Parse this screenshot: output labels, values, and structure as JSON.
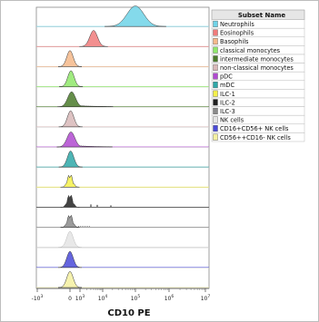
{
  "chart_data": {
    "type": "histogram-overlay",
    "xlabel": "CD10 PE",
    "x_scale": "biexponential",
    "x_ticks": [
      {
        "label": "-10",
        "sup": "3"
      },
      {
        "label": "0",
        "sup": ""
      },
      {
        "label": "10",
        "sup": "3"
      },
      {
        "label": "10",
        "sup": "4"
      },
      {
        "label": "10",
        "sup": "5"
      },
      {
        "label": "10",
        "sup": "6"
      },
      {
        "label": "10",
        "sup": "7"
      }
    ],
    "legend_title": "Subset Name",
    "legend_position": "top-right",
    "series": [
      {
        "name": "Neutrophils",
        "color": "#6fd3e8",
        "peak_log10": 5.0,
        "shape": "wide"
      },
      {
        "name": "Eosinophils",
        "color": "#f07b7b",
        "peak_log10": 3.6,
        "shape": "medium"
      },
      {
        "name": "Basophils",
        "color": "#f4b88a",
        "peak_log10": 0,
        "shape": "narrow"
      },
      {
        "name": "classical monocytes",
        "color": "#8fe86a",
        "peak_log10": 0.3,
        "shape": "narrow"
      },
      {
        "name": "intermediate monocytes",
        "color": "#4a7a2a",
        "peak_log10": 0.5,
        "shape": "tail"
      },
      {
        "name": "non-classical monocytes",
        "color": "#d8b8b8",
        "peak_log10": 0.2,
        "shape": "narrow"
      },
      {
        "name": "pDC",
        "color": "#b04ad0",
        "peak_log10": 0.3,
        "shape": "tail"
      },
      {
        "name": "mDC",
        "color": "#2fa8a8",
        "peak_log10": 0.2,
        "shape": "narrow"
      },
      {
        "name": "ILC-1",
        "color": "#f4f04a",
        "peak_log10": 0,
        "shape": "spiky"
      },
      {
        "name": "ILC-2",
        "color": "#222222",
        "peak_log10": 0,
        "shape": "spiky"
      },
      {
        "name": "ILC-3",
        "color": "#8a8a8a",
        "peak_log10": 0,
        "shape": "spiky"
      },
      {
        "name": "NK cells",
        "color": "#e4e4e4",
        "peak_log10": 0,
        "shape": "narrow"
      },
      {
        "name": "CD16+CD56+ NK cells",
        "color": "#4a4ad8",
        "peak_log10": 0,
        "shape": "narrow"
      },
      {
        "name": "CD56++CD16- NK cells",
        "color": "#f4f0a0",
        "peak_log10": 0,
        "shape": "narrow"
      }
    ]
  }
}
